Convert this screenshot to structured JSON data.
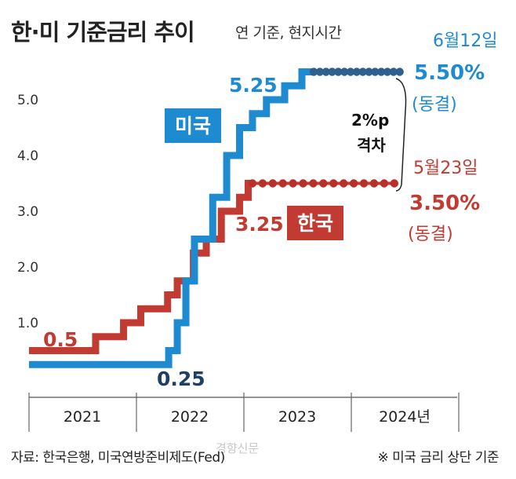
{
  "header": {
    "title": "한·미 기준금리 추이",
    "subtitle": "연 기준, 현지시간"
  },
  "footer": {
    "source": "자료: 한국은행, 미국연방준비제도(Fed)",
    "note": "※ 미국 금리 상단 기준",
    "watermark": "경향신문"
  },
  "colors": {
    "us": "#1e8ad0",
    "korea": "#c23b32",
    "us_dot": "#2f5f8f",
    "korea_dot": "#b8302a",
    "label_dark": "#1f3f66"
  },
  "annotations": {
    "us_badge": "미국",
    "kr_badge": "한국",
    "us_point_label": "5.25",
    "kr_point_label": "3.25",
    "kr_start_label": "0.5",
    "us_start_label": "0.25",
    "us_end_date": "6월12일",
    "us_end_value": "5.50%",
    "us_end_status": "(동결)",
    "kr_end_date": "5월23일",
    "kr_end_value": "3.50%",
    "kr_end_status": "(동결)",
    "gap_line1": "2%p",
    "gap_line2": "격차"
  },
  "chart_data": {
    "type": "line",
    "step": true,
    "xlabel": "",
    "ylabel": "",
    "ylim": [
      0,
      5.5
    ],
    "yticks": [
      "1.0",
      "2.0",
      "3.0",
      "4.0",
      "5.0"
    ],
    "x_categories": [
      "2021",
      "2022",
      "2023",
      "2024년"
    ],
    "series": [
      {
        "name": "미국",
        "values": [
          [
            2021.0,
            0.25
          ],
          [
            2022.2,
            0.25
          ],
          [
            2022.3,
            0.5
          ],
          [
            2022.38,
            1.0
          ],
          [
            2022.46,
            1.75
          ],
          [
            2022.54,
            2.5
          ],
          [
            2022.71,
            3.25
          ],
          [
            2022.84,
            4.0
          ],
          [
            2022.96,
            4.5
          ],
          [
            2023.08,
            4.75
          ],
          [
            2023.21,
            5.0
          ],
          [
            2023.38,
            5.25
          ],
          [
            2023.54,
            5.5
          ],
          [
            2024.45,
            5.5
          ]
        ],
        "dotted_from": 2023.65
      },
      {
        "name": "한국",
        "values": [
          [
            2021.0,
            0.5
          ],
          [
            2021.62,
            0.75
          ],
          [
            2021.88,
            1.0
          ],
          [
            2022.04,
            1.25
          ],
          [
            2022.29,
            1.5
          ],
          [
            2022.38,
            1.75
          ],
          [
            2022.53,
            2.25
          ],
          [
            2022.65,
            2.5
          ],
          [
            2022.79,
            3.0
          ],
          [
            2022.96,
            3.25
          ],
          [
            2023.04,
            3.5
          ],
          [
            2024.4,
            3.5
          ]
        ],
        "dotted_from": 2023.08
      }
    ]
  }
}
